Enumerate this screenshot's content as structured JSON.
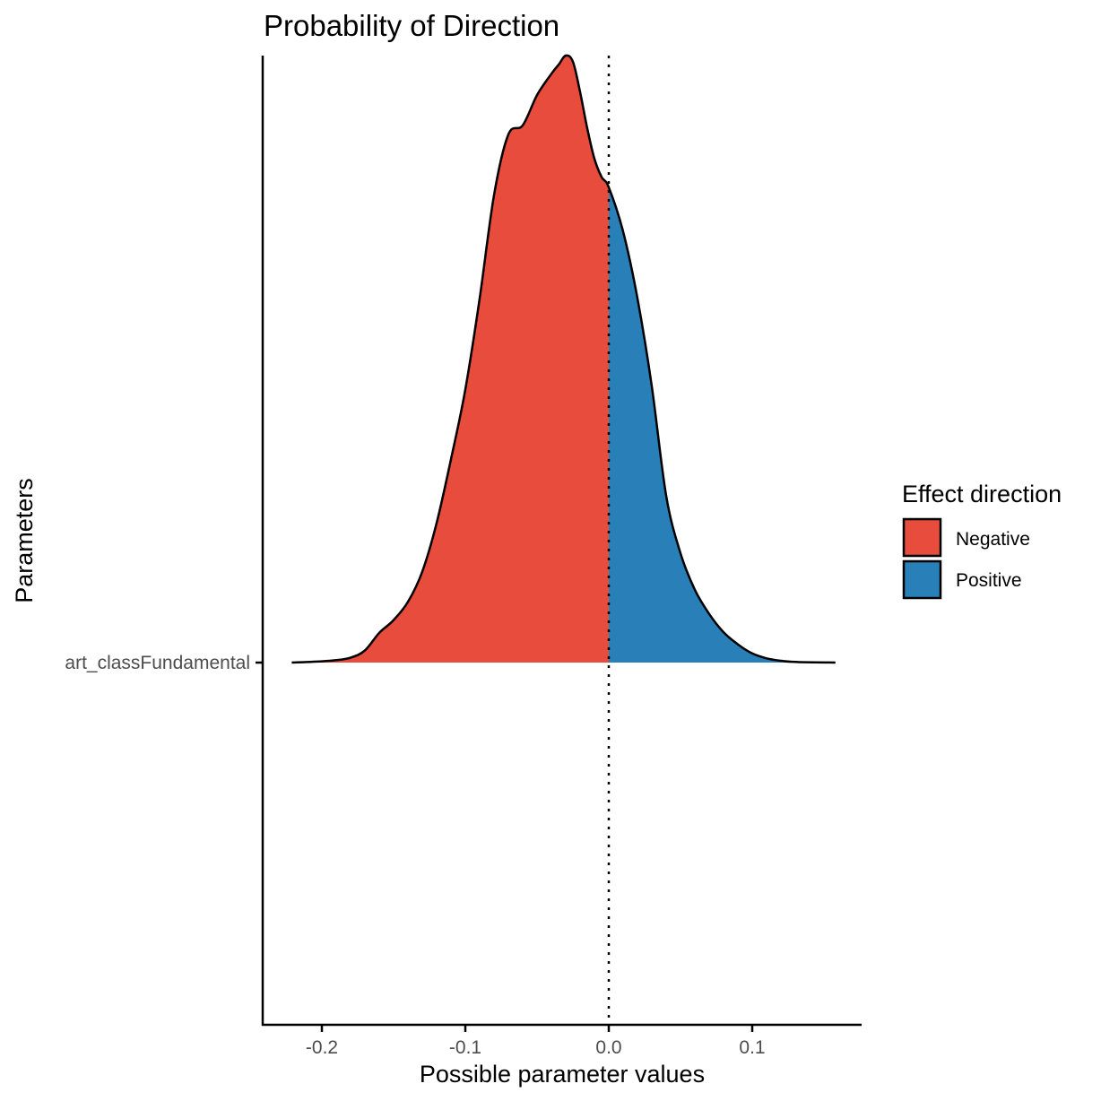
{
  "chart_data": {
    "type": "area",
    "title": "Probability of Direction",
    "xlabel": "Possible parameter values",
    "ylabel": "Parameters",
    "xlim": [
      -0.24,
      0.175
    ],
    "x_ticks": [
      -0.2,
      -0.1,
      0.0,
      0.1
    ],
    "x_tick_labels": [
      "-0.2",
      "-0.1",
      "0.0",
      "0.1"
    ],
    "y_categories": [
      "art_classFundamental"
    ],
    "reference_line_x": 0,
    "grid": false,
    "legend": {
      "title": "Effect direction",
      "placement": "right",
      "entries": [
        {
          "label": "Negative",
          "color": "#e74c3c"
        },
        {
          "label": "Positive",
          "color": "#2980b9"
        }
      ]
    },
    "density": {
      "parameter": "art_classFundamental",
      "x": [
        -0.221,
        -0.2,
        -0.19,
        -0.18,
        -0.17,
        -0.16,
        -0.15,
        -0.14,
        -0.13,
        -0.12,
        -0.11,
        -0.1,
        -0.09,
        -0.08,
        -0.07,
        -0.06,
        -0.05,
        -0.04,
        -0.035,
        -0.03,
        -0.025,
        -0.02,
        -0.015,
        -0.01,
        -0.005,
        0.0,
        0.01,
        0.02,
        0.03,
        0.04,
        0.05,
        0.06,
        0.07,
        0.08,
        0.09,
        0.1,
        0.11,
        0.12,
        0.13,
        0.158
      ],
      "y": [
        0.0,
        0.002,
        0.004,
        0.008,
        0.02,
        0.049,
        0.07,
        0.1,
        0.15,
        0.23,
        0.335,
        0.45,
        0.6,
        0.77,
        0.87,
        0.885,
        0.935,
        0.97,
        0.985,
        1.0,
        0.99,
        0.94,
        0.88,
        0.83,
        0.8,
        0.783,
        0.71,
        0.6,
        0.455,
        0.275,
        0.18,
        0.12,
        0.08,
        0.05,
        0.03,
        0.015,
        0.007,
        0.003,
        0.001,
        0.0
      ]
    }
  }
}
